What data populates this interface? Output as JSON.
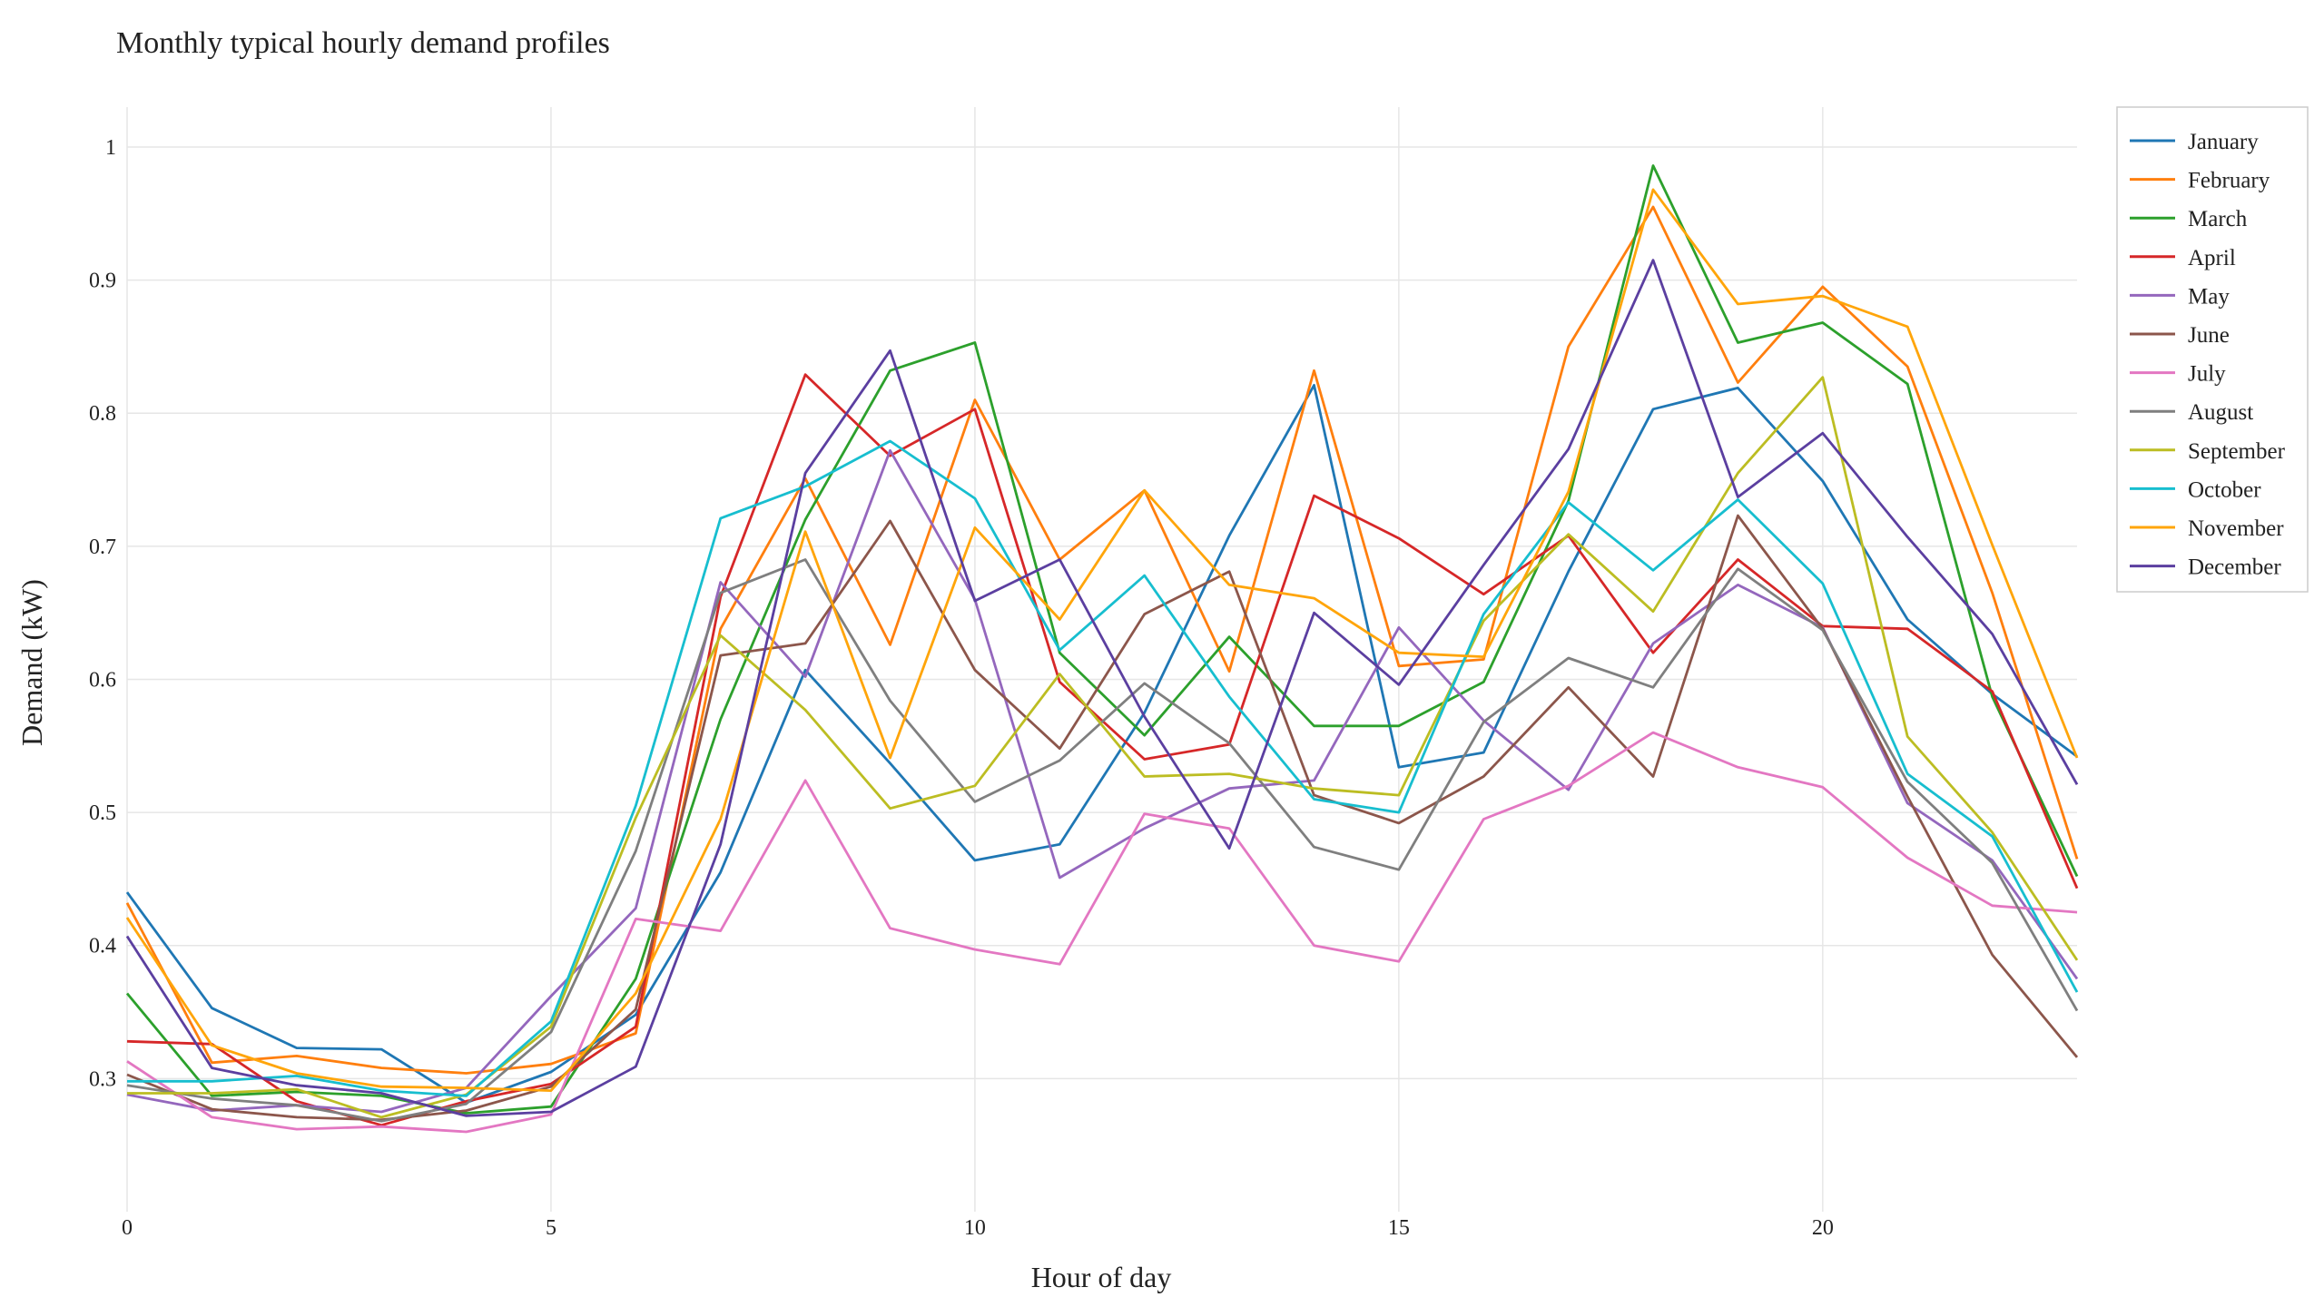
{
  "chart_data": {
    "type": "line",
    "title": "Monthly typical hourly demand profiles",
    "xlabel": "Hour of day",
    "ylabel": "Demand (kW)",
    "x": [
      0,
      1,
      2,
      3,
      4,
      5,
      6,
      7,
      8,
      9,
      10,
      11,
      12,
      13,
      14,
      15,
      16,
      17,
      18,
      19,
      20,
      21,
      22,
      23
    ],
    "xlim": [
      0,
      23
    ],
    "ylim": [
      0.2,
      1.03
    ],
    "xticks": [
      0,
      5,
      10,
      15,
      20
    ],
    "yticks": [
      0.3,
      0.4,
      0.5,
      0.6,
      0.7,
      0.8,
      0.9,
      1
    ],
    "grid": true,
    "legend_position": "top-right",
    "series": [
      {
        "name": "January",
        "color": "#1f77b4",
        "values": [
          0.44,
          0.353,
          0.323,
          0.322,
          0.282,
          0.305,
          0.348,
          0.455,
          0.607,
          0.537,
          0.464,
          0.476,
          0.575,
          0.708,
          0.821,
          0.534,
          0.545,
          0.681,
          0.803,
          0.819,
          0.749,
          0.645,
          0.589,
          0.542
        ]
      },
      {
        "name": "February",
        "color": "#ff7f0e",
        "values": [
          0.432,
          0.312,
          0.317,
          0.308,
          0.304,
          0.311,
          0.334,
          0.638,
          0.751,
          0.626,
          0.81,
          0.69,
          0.742,
          0.606,
          0.832,
          0.61,
          0.615,
          0.85,
          0.955,
          0.823,
          0.895,
          0.835,
          0.665,
          0.465
        ]
      },
      {
        "name": "March",
        "color": "#2ca02c",
        "values": [
          0.364,
          0.287,
          0.29,
          0.287,
          0.274,
          0.279,
          0.375,
          0.57,
          0.72,
          0.832,
          0.853,
          0.62,
          0.558,
          0.632,
          0.565,
          0.565,
          0.598,
          0.734,
          0.986,
          0.853,
          0.868,
          0.822,
          0.587,
          0.452
        ]
      },
      {
        "name": "April",
        "color": "#d62728",
        "values": [
          0.328,
          0.326,
          0.283,
          0.265,
          0.283,
          0.296,
          0.339,
          0.662,
          0.829,
          0.768,
          0.803,
          0.598,
          0.54,
          0.551,
          0.738,
          0.706,
          0.664,
          0.708,
          0.62,
          0.69,
          0.64,
          0.638,
          0.591,
          0.443
        ]
      },
      {
        "name": "May",
        "color": "#9467bd",
        "values": [
          0.288,
          0.276,
          0.28,
          0.275,
          0.293,
          0.362,
          0.428,
          0.673,
          0.602,
          0.772,
          0.66,
          0.451,
          0.488,
          0.518,
          0.524,
          0.639,
          0.569,
          0.517,
          0.627,
          0.671,
          0.639,
          0.507,
          0.464,
          0.375
        ]
      },
      {
        "name": "June",
        "color": "#8c564b",
        "values": [
          0.303,
          0.277,
          0.271,
          0.269,
          0.276,
          0.294,
          0.352,
          0.618,
          0.627,
          0.719,
          0.607,
          0.548,
          0.649,
          0.681,
          0.513,
          0.492,
          0.527,
          0.594,
          0.527,
          0.723,
          0.638,
          0.512,
          0.393,
          0.316
        ]
      },
      {
        "name": "July",
        "color": "#e377c2",
        "values": [
          0.313,
          0.271,
          0.262,
          0.264,
          0.26,
          0.273,
          0.42,
          0.411,
          0.524,
          0.413,
          0.397,
          0.386,
          0.499,
          0.488,
          0.4,
          0.388,
          0.495,
          0.52,
          0.56,
          0.534,
          0.519,
          0.466,
          0.43,
          0.425
        ]
      },
      {
        "name": "August",
        "color": "#7f7f7f",
        "values": [
          0.295,
          0.285,
          0.28,
          0.268,
          0.281,
          0.335,
          0.471,
          0.665,
          0.69,
          0.584,
          0.508,
          0.539,
          0.597,
          0.552,
          0.474,
          0.457,
          0.568,
          0.616,
          0.594,
          0.683,
          0.637,
          0.523,
          0.462,
          0.351
        ]
      },
      {
        "name": "September",
        "color": "#bcbd22",
        "values": [
          0.289,
          0.289,
          0.292,
          0.271,
          0.288,
          0.339,
          0.496,
          0.633,
          0.577,
          0.503,
          0.52,
          0.604,
          0.527,
          0.529,
          0.518,
          0.513,
          0.644,
          0.709,
          0.651,
          0.755,
          0.827,
          0.557,
          0.485,
          0.389
        ]
      },
      {
        "name": "October",
        "color": "#17becf",
        "values": [
          0.298,
          0.298,
          0.302,
          0.291,
          0.287,
          0.343,
          0.505,
          0.721,
          0.745,
          0.779,
          0.736,
          0.622,
          0.678,
          0.587,
          0.51,
          0.5,
          0.649,
          0.733,
          0.682,
          0.735,
          0.672,
          0.529,
          0.482,
          0.365
        ]
      },
      {
        "name": "November",
        "color": "#ffa50a",
        "values": [
          0.421,
          0.325,
          0.304,
          0.294,
          0.293,
          0.291,
          0.364,
          0.495,
          0.711,
          0.541,
          0.714,
          0.645,
          0.742,
          0.671,
          0.661,
          0.62,
          0.617,
          0.741,
          0.968,
          0.882,
          0.888,
          0.865,
          0.701,
          0.541
        ]
      },
      {
        "name": "December",
        "color": "#5b3fa0",
        "values": [
          0.407,
          0.308,
          0.295,
          0.289,
          0.272,
          0.275,
          0.309,
          0.476,
          0.755,
          0.847,
          0.659,
          0.69,
          0.572,
          0.473,
          0.65,
          0.596,
          0.686,
          0.773,
          0.915,
          0.737,
          0.785,
          0.707,
          0.634,
          0.521
        ]
      }
    ]
  }
}
